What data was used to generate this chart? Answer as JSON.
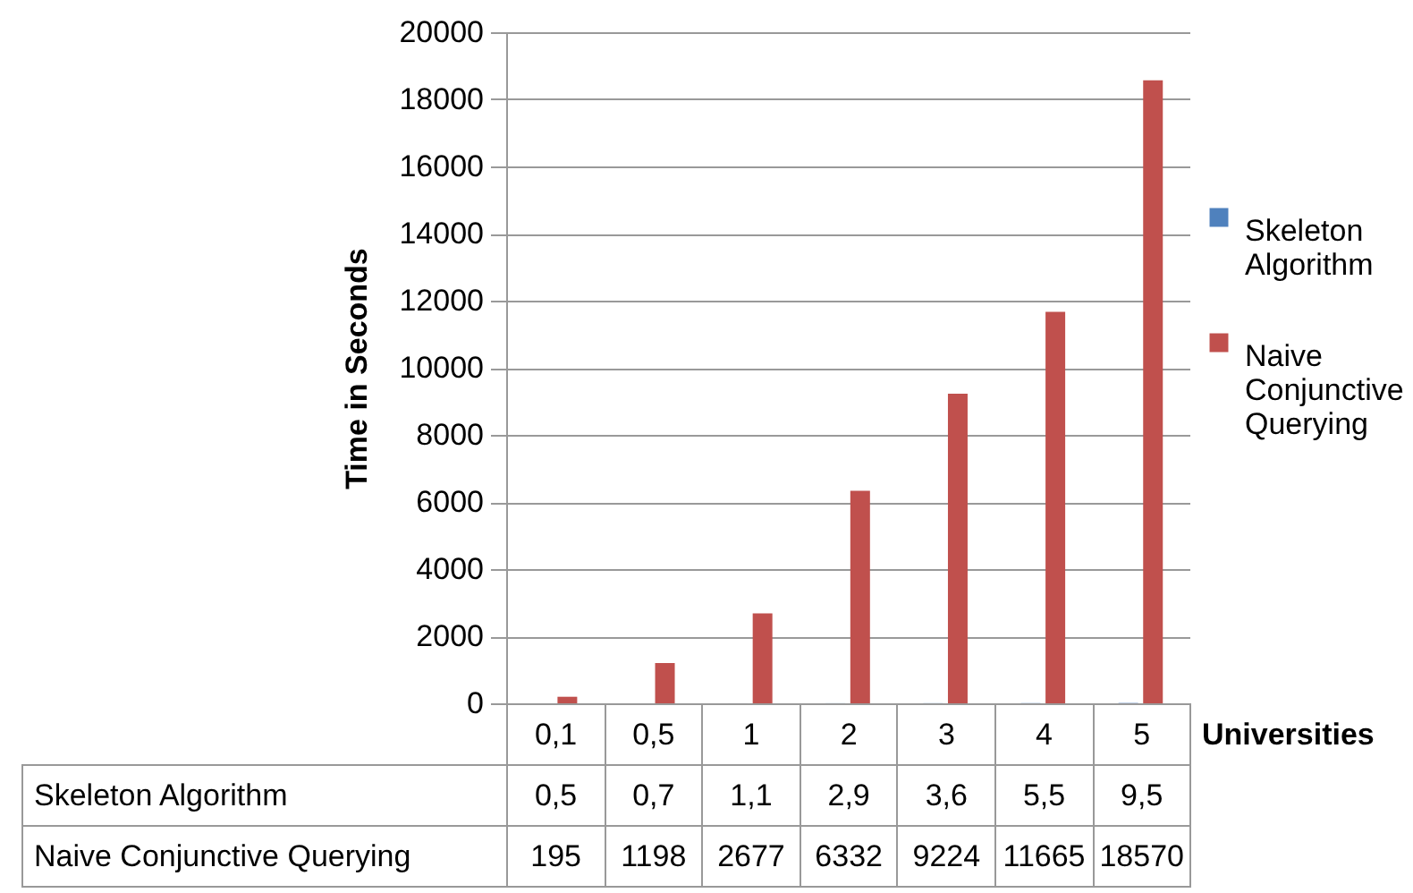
{
  "chart_data": {
    "type": "bar",
    "ylabel": "Time in Seconds",
    "xlabel": "Universities",
    "categories": [
      "0,1",
      "0,5",
      "1",
      "2",
      "3",
      "4",
      "5"
    ],
    "series": [
      {
        "name": "Skeleton Algorithm",
        "color": "#4f81bd",
        "values": [
          0.5,
          0.7,
          1.1,
          2.9,
          3.6,
          5.5,
          9.5
        ],
        "value_labels": [
          "0,5",
          "0,7",
          "1,1",
          "2,9",
          "3,6",
          "5,5",
          "9,5"
        ]
      },
      {
        "name": "Naive Conjunctive Querying",
        "color": "#c0504d",
        "values": [
          195,
          1198,
          2677,
          6332,
          9224,
          11665,
          18570
        ],
        "value_labels": [
          "195",
          "1198",
          "2677",
          "6332",
          "9224",
          "11665",
          "18570"
        ]
      }
    ],
    "ylim": [
      0,
      20000
    ],
    "yticks": [
      0,
      2000,
      4000,
      6000,
      8000,
      10000,
      12000,
      14000,
      16000,
      18000,
      20000
    ],
    "grid": "y",
    "legend": "right"
  }
}
